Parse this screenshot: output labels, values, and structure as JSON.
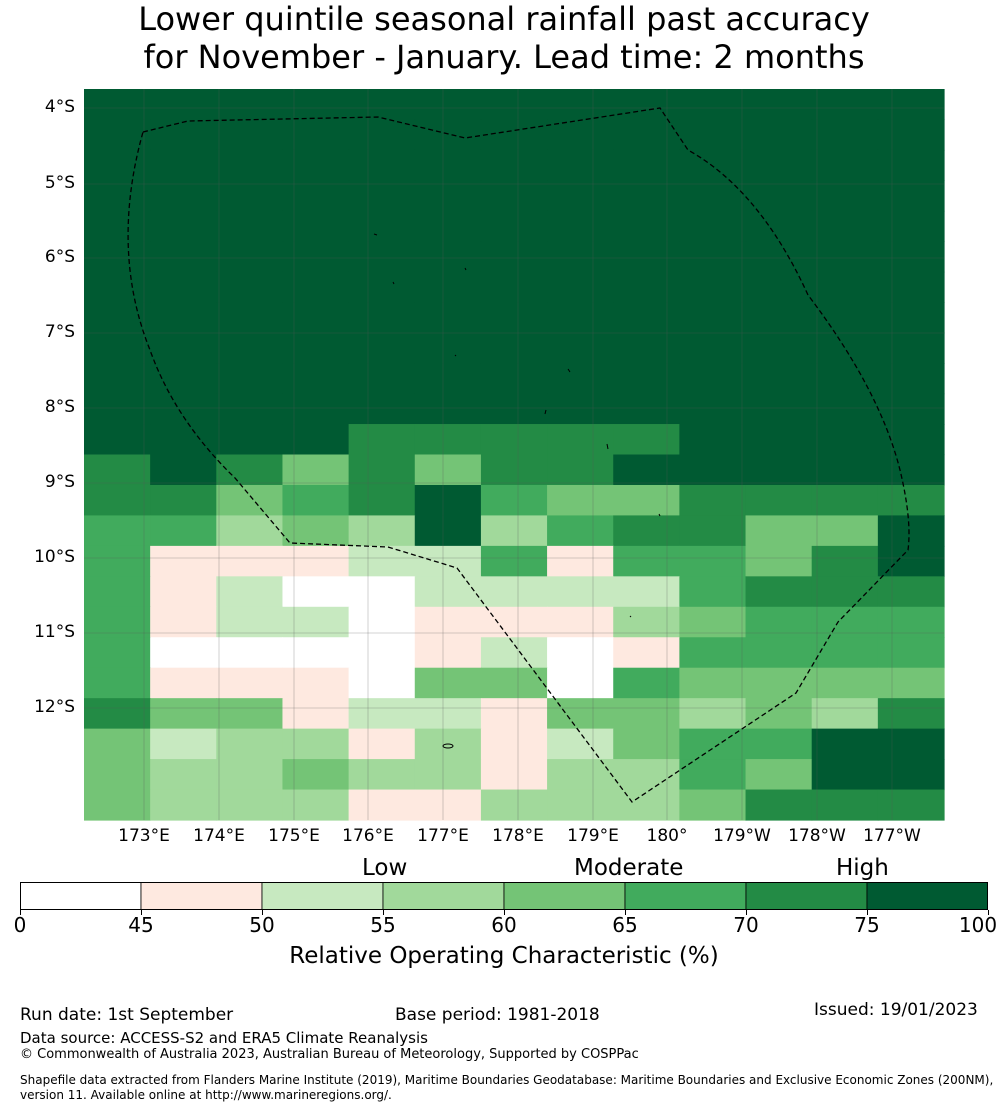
{
  "title": {
    "line1": "Lower quintile seasonal rainfall past accuracy",
    "line2": "for November - January. Lead time: 2 months"
  },
  "map": {
    "lat_labels": [
      "4°S",
      "5°S",
      "6°S",
      "7°S",
      "8°S",
      "9°S",
      "10°S",
      "11°S",
      "12°S"
    ],
    "lon_labels": [
      "173°E",
      "174°E",
      "175°E",
      "176°E",
      "177°E",
      "178°E",
      "179°E",
      "180°",
      "179°W",
      "178°W",
      "177°W"
    ],
    "grid_rows": [
      "9999999999999",
      "9999999999999",
      "9999999999999",
      "9999999999999",
      "9999999999999",
      "9999999999999",
      "9999999999999",
      "9999999999999",
      "9999999999999",
      "9999999999999",
      "9999999999999",
      "9999888889999",
      "8987878899999",
      "8876896778888",
      "6537393688779",
      "6111225166789",
      "6120022226888",
      "6122011134666",
      "6000012016666",
      "6111044054444",
      "8441221443438",
      "7233131276699",
      "7334331335799",
      "7333113337888"
    ]
  },
  "colorbar": {
    "band_labels": {
      "low": "Low",
      "moderate": "Moderate",
      "high": "High"
    },
    "ticks": [
      "0",
      "45",
      "50",
      "55",
      "60",
      "65",
      "70",
      "75",
      "100"
    ],
    "colors": [
      "#ffffff",
      "#fee9e0",
      "#c7e9c0",
      "#a1d99b",
      "#74c476",
      "#41ab5d",
      "#238b45",
      "#005a32"
    ],
    "title": "Relative Operating Characteristic (%)"
  },
  "footer": {
    "run_date": "Run date: 1st September",
    "base_period": "Base period: 1981-2018",
    "issued": "Issued: 19/01/2023",
    "data_source": "Data source: ACCESS-S2 and ERA5 Climate Reanalysis",
    "copyright": "© Commonwealth of Australia 2023, Australian Bureau of Meteorology, Supported by COSPPac",
    "shapefile": "Shapefile data extracted from Flanders Marine Institute (2019), Maritime Boundaries Geodatabase: Maritime Boundaries and Exclusive Economic Zones (200NM), version 11. Available online at http://www.marineregions.org/."
  }
}
